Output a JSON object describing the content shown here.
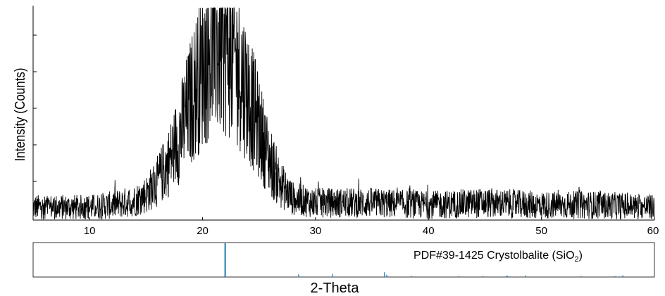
{
  "chart_data": [
    {
      "type": "line",
      "title": "",
      "xlabel": "",
      "ylabel": "Intensity (Counts)",
      "xlim": [
        5,
        60
      ],
      "x_ticks": [
        10,
        20,
        30,
        40,
        50,
        60
      ],
      "x_tick_labels": [
        "10",
        "20",
        "30",
        "40",
        "50",
        "60"
      ],
      "grid": false,
      "series": [
        {
          "style": "noisy XRD pattern, amorphous hump",
          "color": "#000000",
          "x": [
            5,
            8,
            10,
            12,
            14,
            15,
            16,
            17,
            18,
            19,
            20,
            21,
            22,
            23,
            24,
            25,
            26,
            27,
            28,
            30,
            35,
            40,
            45,
            50,
            55,
            60
          ],
          "y": [
            6,
            6,
            6,
            7,
            9,
            12,
            18,
            27,
            40,
            56,
            72,
            81,
            82,
            74,
            59,
            43,
            27,
            16,
            10,
            8,
            8,
            7,
            8,
            7,
            7,
            6
          ]
        }
      ]
    },
    {
      "type": "bar",
      "reference_label": "PDF#39-1425 Crystolbalite (SiO",
      "reference_label_sub": "2",
      "reference_label_close": ")",
      "xlabel": "2-Theta",
      "xlim": [
        5,
        60
      ],
      "color": "#1f77b4",
      "peaks_x": [
        22.0,
        28.5,
        31.5,
        36.1,
        36.3,
        38.5,
        42.7,
        44.8,
        46.9,
        47.0,
        48.6,
        53.5,
        56.5,
        57.2
      ],
      "peaks_intensity": [
        100,
        8,
        9,
        14,
        7,
        3,
        3,
        3,
        4,
        3,
        5,
        3,
        3,
        5
      ]
    }
  ]
}
